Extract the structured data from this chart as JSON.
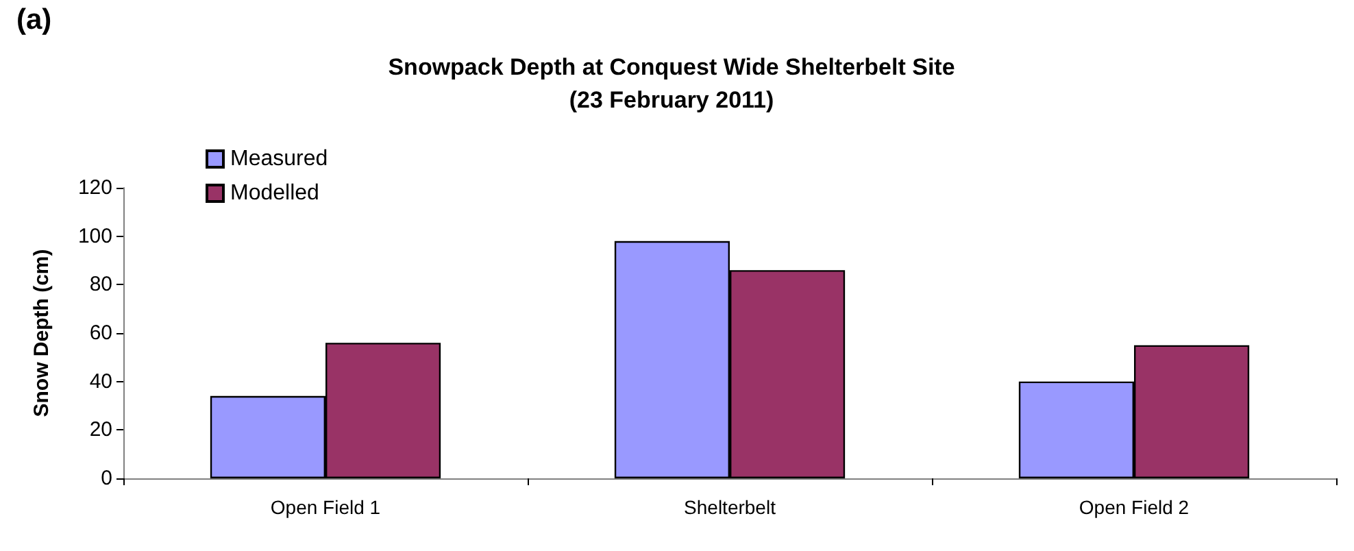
{
  "chart_data": {
    "type": "bar",
    "title": "Snowpack Depth at Conquest Wide Shelterbelt Site\n(23 February 2011)",
    "ylabel": "Snow Depth (cm)",
    "annotations": [
      "(a)"
    ],
    "categories": [
      "Open Field 1",
      "Shelterbelt",
      "Open Field 2"
    ],
    "series": [
      {
        "name": "Measured",
        "color": "#9999ff",
        "values": [
          34,
          98,
          40
        ]
      },
      {
        "name": "Modelled",
        "color": "#993366",
        "values": [
          56,
          86,
          55
        ]
      }
    ],
    "ylim": [
      0,
      120
    ],
    "yticks": [
      0,
      20,
      40,
      60,
      80,
      100,
      120
    ],
    "grid": false,
    "legend": "top left"
  }
}
